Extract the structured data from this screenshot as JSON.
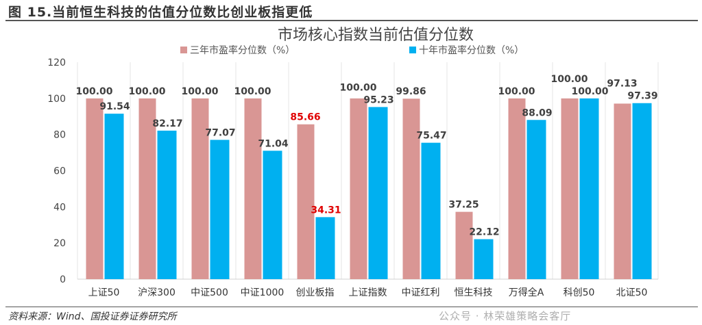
{
  "figure_title": "图 15.当前恒生科技的估值分位数比创业板指更低",
  "source": "资料来源：Wind、国投证券证券研究所",
  "watermark": "公众号 · 林荣雄策略会客厅",
  "colors": {
    "series1": "#d99694",
    "series2": "#00b0f0",
    "highlight_label": "#e00000"
  },
  "chart_data": {
    "type": "bar",
    "title": "市场核心指数当前估值分位数",
    "xlabel": "",
    "ylabel": "",
    "ylim": [
      0,
      120
    ],
    "yticks": [
      0,
      20,
      40,
      60,
      80,
      100,
      120
    ],
    "grid": "vertical-separators",
    "legend": "top",
    "categories": [
      "上证50",
      "沪深300",
      "中证500",
      "中证1000",
      "创业板指",
      "上证指数",
      "中证红利",
      "恒生科技",
      "万得全A",
      "科创50",
      "北证50"
    ],
    "series": [
      {
        "name": "三年市盈率分位数（%）",
        "values": [
          100.0,
          100.0,
          100.0,
          100.0,
          85.66,
          100.0,
          99.86,
          37.25,
          100.0,
          100.0,
          97.13
        ]
      },
      {
        "name": "十年市盈率分位数（%）",
        "values": [
          91.54,
          82.17,
          77.07,
          71.04,
          34.31,
          95.23,
          75.47,
          22.12,
          88.09,
          100.0,
          97.39
        ]
      }
    ],
    "highlighted_category": "创业板指"
  }
}
